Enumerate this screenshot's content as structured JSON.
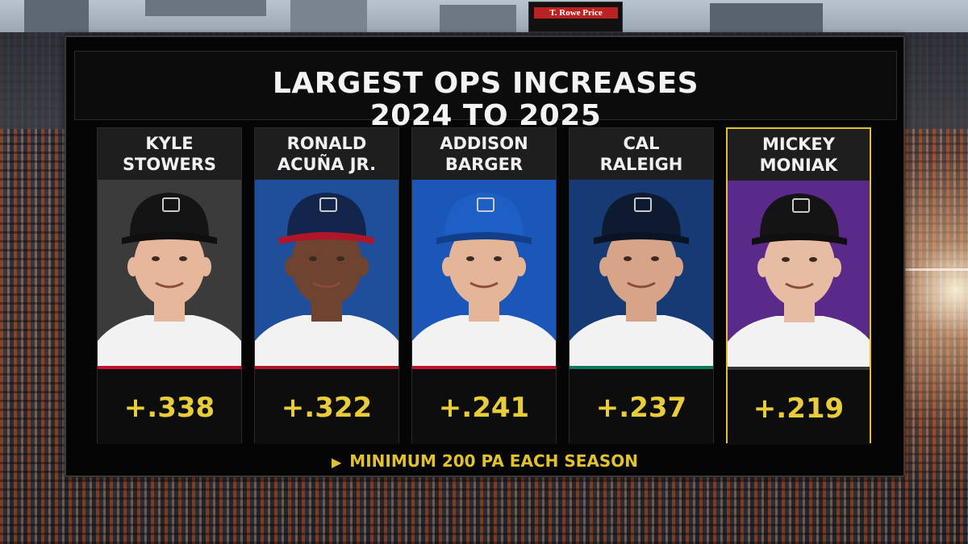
{
  "broadcast": {
    "scoreboard_text": "T. Rowe Price"
  },
  "graphic": {
    "title_line1": "LARGEST OPS INCREASES",
    "title_line2": "2024 TO 2025",
    "footnote_marker": "▶",
    "footnote": "MINIMUM 200 PA EACH SEASON"
  },
  "players": [
    {
      "first": "KYLE",
      "last": "STOWERS",
      "value": "+.338",
      "team_logo": "marlins-M-logo",
      "bg": "#3b3b3b",
      "stripe": "#c8102e",
      "highlight": false
    },
    {
      "first": "RONALD",
      "last": "ACUÑA JR.",
      "value": "+.322",
      "team_logo": "braves-A-logo",
      "bg": "#1f4f9a",
      "stripe": "#b0162a",
      "highlight": false
    },
    {
      "first": "ADDISON",
      "last": "BARGER",
      "value": "+.241",
      "team_logo": "blue-jays-logo",
      "bg": "#1b57b8",
      "stripe": "#c8102e",
      "highlight": false
    },
    {
      "first": "CAL",
      "last": "RALEIGH",
      "value": "+.237",
      "team_logo": "mariners-S-logo",
      "bg": "#163b74",
      "stripe": "#0a7a5c",
      "highlight": false
    },
    {
      "first": "MICKEY",
      "last": "MONIAK",
      "value": "+.219",
      "team_logo": "rockies-CR-logo",
      "bg": "#5a2a8a",
      "stripe": "#333333",
      "highlight": true
    }
  ]
}
